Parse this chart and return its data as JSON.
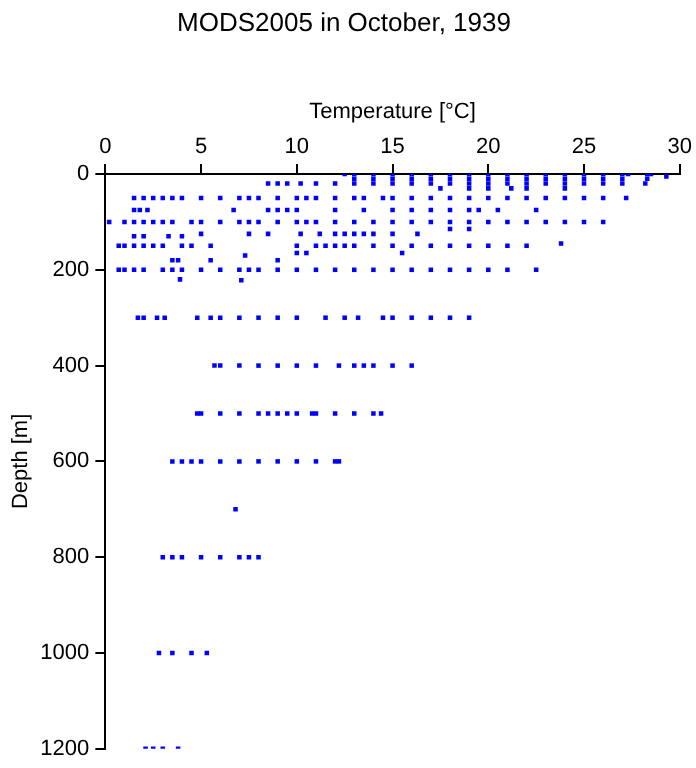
{
  "chart_data": {
    "type": "scatter",
    "title": "MODS2005 in October, 1939",
    "xlabel": "Temperature [°C]",
    "ylabel": "Depth [m]",
    "xlim": [
      0,
      30
    ],
    "xticks": [
      0,
      5,
      10,
      15,
      20,
      25,
      30
    ],
    "ylim": [
      1200,
      0
    ],
    "yticks": [
      0,
      200,
      400,
      600,
      800,
      1000,
      1200
    ],
    "grid": false,
    "legend": false,
    "marker": "square",
    "series": [
      {
        "color": "#0000ff",
        "x": [
          12.5,
          13,
          14,
          15,
          16,
          17,
          18,
          19,
          20,
          21,
          22,
          23,
          24,
          25,
          26,
          27,
          27.3,
          28.3,
          28.5,
          13,
          14,
          15,
          16,
          17,
          18,
          19,
          20,
          21,
          22,
          23,
          24,
          25,
          26,
          27,
          29.3,
          28.3,
          8.5,
          9,
          9.5,
          10.2,
          11,
          12,
          13,
          14,
          15,
          16,
          17,
          18,
          19,
          20,
          21,
          22,
          23,
          24,
          25,
          26,
          27,
          28.2,
          17.5,
          19,
          20,
          21.2,
          22,
          24,
          1.5,
          2,
          2.5,
          3,
          3.5,
          4,
          5,
          6,
          7,
          7.5,
          8,
          9,
          10,
          10.5,
          11,
          12,
          13,
          13.5,
          14.5,
          15,
          16,
          17,
          18,
          19,
          20,
          21,
          22,
          23,
          24,
          25,
          26,
          27.2,
          1.5,
          1.8,
          2.2,
          6.7,
          8.5,
          9,
          9.5,
          10,
          12,
          13.5,
          15,
          16,
          17,
          18,
          19,
          19.5,
          20.5,
          22.5,
          0.2,
          1,
          1.5,
          2,
          2.5,
          3,
          3.5,
          4.5,
          5,
          6,
          7,
          7.5,
          8,
          9,
          10,
          10.5,
          11,
          12,
          13,
          14,
          15,
          16,
          17,
          18,
          19,
          20,
          21,
          22,
          23,
          24,
          25,
          26,
          5,
          7.5,
          8.5,
          10.2,
          11.2,
          12,
          12.5,
          13,
          13.5,
          14,
          15,
          16.3,
          18,
          19,
          1.5,
          2,
          3.3,
          4,
          0.7,
          1,
          1.5,
          2,
          2.5,
          3,
          4,
          4.5,
          5.5,
          10,
          11,
          11.5,
          12,
          12.5,
          13,
          14,
          15,
          16,
          17,
          18,
          19,
          20,
          21,
          22,
          23.8,
          10,
          10.5,
          15.5,
          7.3,
          3.5,
          3.8,
          5.5,
          9,
          3.9,
          7.1,
          0.7,
          1,
          1.5,
          2,
          3,
          3.5,
          4,
          5,
          6,
          7,
          7.5,
          8,
          9,
          10,
          11,
          12,
          13,
          14,
          15,
          16,
          17,
          18,
          19,
          20,
          21,
          22.5,
          1.7,
          2,
          2.7,
          3.1,
          4.8,
          5.5,
          6,
          7,
          8,
          9,
          10,
          11.5,
          12.5,
          13.2,
          14.5,
          15,
          16,
          17,
          18,
          19,
          5.7,
          6,
          7,
          8,
          9,
          10,
          11,
          12.2,
          13,
          13.5,
          14,
          15,
          16,
          4.8,
          5,
          6,
          7,
          8,
          8.5,
          9,
          9.5,
          10,
          10.8,
          11,
          12,
          13,
          14,
          14.4,
          3.5,
          4,
          4.5,
          5,
          6,
          7,
          8,
          9,
          10,
          11,
          12,
          12.2,
          6.8,
          3,
          3.5,
          4,
          5,
          6,
          7,
          7.5,
          8,
          2.8,
          3.5,
          4.5,
          5.3,
          2.1,
          2.5,
          3,
          3.8
        ],
        "values": [
          0,
          0,
          0,
          0,
          0,
          0,
          0,
          0,
          0,
          0,
          0,
          0,
          0,
          0,
          0,
          0,
          0,
          0,
          0,
          10,
          10,
          10,
          10,
          10,
          10,
          10,
          10,
          10,
          10,
          10,
          10,
          10,
          10,
          10,
          5,
          10,
          20,
          20,
          20,
          20,
          20,
          20,
          20,
          20,
          20,
          20,
          20,
          20,
          20,
          20,
          20,
          20,
          20,
          20,
          20,
          20,
          20,
          20,
          30,
          30,
          30,
          30,
          30,
          30,
          50,
          50,
          50,
          50,
          50,
          50,
          50,
          50,
          50,
          50,
          50,
          50,
          50,
          50,
          50,
          50,
          50,
          50,
          50,
          50,
          50,
          50,
          50,
          50,
          50,
          50,
          50,
          50,
          50,
          50,
          50,
          50,
          75,
          75,
          75,
          75,
          75,
          75,
          75,
          75,
          75,
          75,
          75,
          75,
          75,
          75,
          75,
          75,
          75,
          75,
          100,
          100,
          100,
          100,
          100,
          100,
          100,
          100,
          100,
          100,
          100,
          100,
          100,
          100,
          100,
          100,
          100,
          100,
          100,
          100,
          100,
          100,
          100,
          100,
          100,
          100,
          100,
          100,
          100,
          100,
          100,
          100,
          125,
          125,
          125,
          125,
          125,
          125,
          125,
          125,
          125,
          125,
          125,
          125,
          115,
          115,
          130,
          130,
          130,
          130,
          150,
          150,
          150,
          150,
          150,
          150,
          150,
          150,
          150,
          150,
          150,
          150,
          150,
          150,
          150,
          150,
          150,
          150,
          150,
          150,
          150,
          150,
          150,
          150,
          145,
          165,
          165,
          165,
          170,
          180,
          180,
          180,
          180,
          220,
          222,
          200,
          200,
          200,
          200,
          200,
          200,
          200,
          200,
          200,
          200,
          200,
          200,
          200,
          200,
          200,
          200,
          200,
          200,
          200,
          200,
          200,
          200,
          200,
          200,
          200,
          200,
          300,
          300,
          300,
          300,
          300,
          300,
          300,
          300,
          300,
          300,
          300,
          300,
          300,
          300,
          300,
          300,
          300,
          300,
          300,
          300,
          400,
          400,
          400,
          400,
          400,
          400,
          400,
          400,
          400,
          400,
          400,
          400,
          400,
          500,
          500,
          500,
          500,
          500,
          500,
          500,
          500,
          500,
          500,
          500,
          500,
          500,
          500,
          500,
          600,
          600,
          600,
          600,
          600,
          600,
          600,
          600,
          600,
          600,
          600,
          600,
          700,
          800,
          800,
          800,
          800,
          800,
          800,
          800,
          800,
          1000,
          1000,
          1000,
          1000,
          1200,
          1200,
          1200,
          1200
        ]
      }
    ]
  }
}
